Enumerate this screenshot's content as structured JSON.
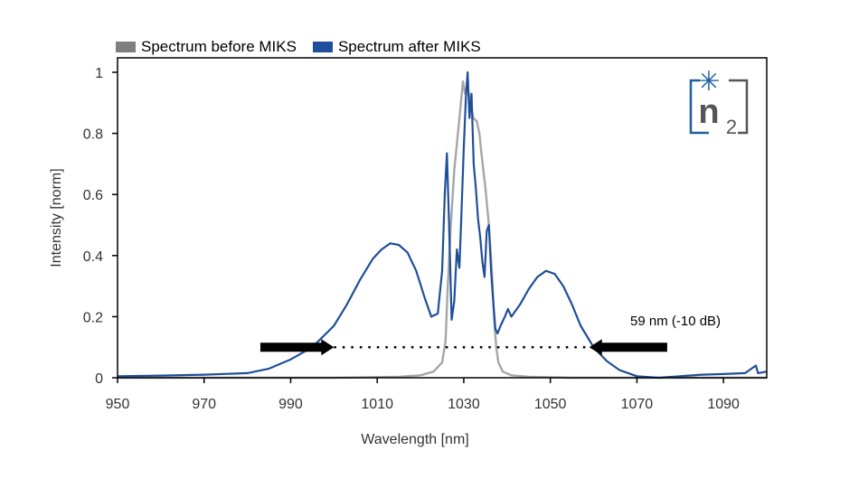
{
  "chart_data": {
    "type": "line",
    "title": "",
    "xlabel": "Wavelength [nm]",
    "ylabel": "Intensity [norm]",
    "xlim": [
      950,
      1100
    ],
    "ylim": [
      0,
      1.05
    ],
    "xticks": [
      950,
      970,
      990,
      1010,
      1030,
      1050,
      1070,
      1090
    ],
    "yticks": [
      0,
      0.2,
      0.4,
      0.6,
      0.8,
      1
    ],
    "ytick_labels": [
      "0",
      "0.2",
      "0.4",
      "0.6",
      "0.8",
      "1"
    ],
    "grid": false,
    "legend_position": "top-left-outside",
    "series": [
      {
        "name": "Spectrum before MIKS",
        "color": "#a6a6a6",
        "legend_color": "#7f7f7f",
        "x": [
          950,
          1000,
          1015,
          1020,
          1023,
          1025,
          1025.8,
          1026.3,
          1027,
          1027.8,
          1028.5,
          1029.2,
          1029.8,
          1030.3,
          1030.8,
          1031.5,
          1032.2,
          1033,
          1033.6,
          1034.2,
          1035,
          1035.8,
          1036.5,
          1037,
          1037.5,
          1038,
          1039,
          1041,
          1045,
          1055,
          1100
        ],
        "y": [
          0.0,
          0.0,
          0.003,
          0.008,
          0.02,
          0.05,
          0.12,
          0.3,
          0.5,
          0.68,
          0.78,
          0.88,
          0.97,
          0.93,
          0.96,
          0.9,
          0.85,
          0.84,
          0.8,
          0.72,
          0.62,
          0.5,
          0.35,
          0.2,
          0.1,
          0.05,
          0.02,
          0.008,
          0.003,
          0.0,
          0.0
        ]
      },
      {
        "name": "Spectrum after MIKS",
        "color": "#1f4e9a",
        "legend_color": "#1f4e9a",
        "x": [
          950,
          960,
          970,
          980,
          985,
          990,
          995,
          1000,
          1003,
          1006,
          1009,
          1011,
          1013,
          1015,
          1017,
          1019,
          1021,
          1022.5,
          1024,
          1025,
          1025.6,
          1026.1,
          1026.6,
          1027.2,
          1027.8,
          1028.4,
          1029,
          1029.5,
          1030,
          1030.5,
          1030.9,
          1031.3,
          1031.8,
          1032.3,
          1032.8,
          1033.3,
          1033.8,
          1034.3,
          1034.8,
          1035.3,
          1035.8,
          1036.3,
          1036.8,
          1037.3,
          1037.8,
          1038.5,
          1039.5,
          1040.2,
          1041,
          1043,
          1045,
          1047,
          1049,
          1051,
          1053,
          1055,
          1057,
          1060,
          1063,
          1066,
          1070,
          1075,
          1080,
          1085,
          1090,
          1095,
          1097.5,
          1098,
          1100
        ],
        "y": [
          0.005,
          0.007,
          0.01,
          0.015,
          0.03,
          0.06,
          0.1,
          0.17,
          0.24,
          0.32,
          0.39,
          0.42,
          0.44,
          0.435,
          0.41,
          0.35,
          0.26,
          0.2,
          0.21,
          0.35,
          0.6,
          0.735,
          0.5,
          0.19,
          0.25,
          0.42,
          0.36,
          0.55,
          0.75,
          0.92,
          1.0,
          0.85,
          0.93,
          0.7,
          0.62,
          0.52,
          0.46,
          0.38,
          0.33,
          0.48,
          0.5,
          0.35,
          0.25,
          0.16,
          0.145,
          0.17,
          0.2,
          0.225,
          0.2,
          0.24,
          0.29,
          0.33,
          0.35,
          0.34,
          0.3,
          0.24,
          0.17,
          0.1,
          0.055,
          0.025,
          0.005,
          0.0,
          0.005,
          0.01,
          0.012,
          0.015,
          0.04,
          0.015,
          0.02
        ]
      }
    ],
    "annotations": [
      {
        "type": "bandwidth-marker",
        "text": "59 nm (-10 dB)",
        "level": 0.1,
        "x_start": 1000,
        "x_end": 1059,
        "arrow_left_from": 983,
        "arrow_right_from": 1077
      }
    ],
    "logo": {
      "text_main": "n",
      "text_sub": "2",
      "symbol": "✳"
    }
  }
}
